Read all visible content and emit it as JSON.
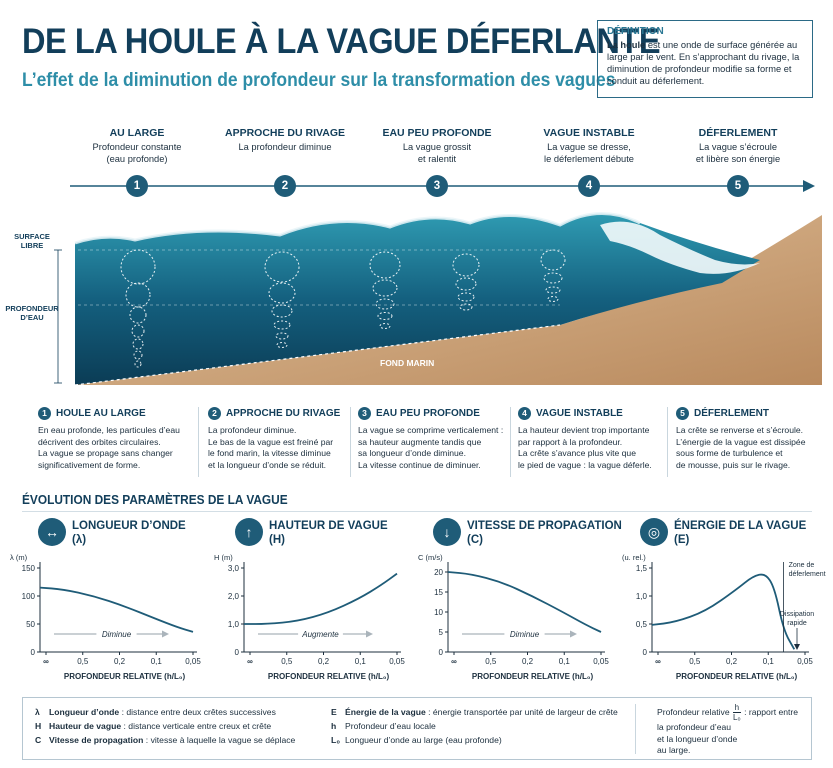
{
  "title": "DE LA HOULE À LA VAGUE DÉFERLANTE",
  "subtitle": "L’effet de la diminution de profondeur sur la transformation des vagues",
  "definition": {
    "heading": "DÉFINITION",
    "text_bold": "La houle",
    "text": " est une onde de surface générée au large par le vent. En s’approchant du rivage, la diminution de profondeur modifie sa forme et conduit au déferlement."
  },
  "stages": [
    {
      "num": "1",
      "title": "AU LARGE",
      "line1": "Profondeur constante",
      "line2": "(eau profonde)"
    },
    {
      "num": "2",
      "title": "APPROCHE DU RIVAGE",
      "line1": "La profondeur diminue",
      "line2": ""
    },
    {
      "num": "3",
      "title": "EAU PEU PROFONDE",
      "line1": "La vague grossit",
      "line2": "et ralentit"
    },
    {
      "num": "4",
      "title": "VAGUE INSTABLE",
      "line1": "La vague se dresse,",
      "line2": "le déferlement débute"
    },
    {
      "num": "5",
      "title": "DÉFERLEMENT",
      "line1": "La vague s’écroule",
      "line2": "et libère son énergie"
    }
  ],
  "diagram_labels": {
    "surface": "SURFACE LIBRE",
    "depth": "PROFONDEUR D’EAU",
    "seabed": "FOND MARIN"
  },
  "colors": {
    "navy": "#123e5a",
    "accent": "#2e8ea8",
    "badge": "#1f5c78",
    "water_deep": "#0f4d6b",
    "water_light": "#2f9bb2",
    "sand": "#cfa57a"
  },
  "descriptions": [
    {
      "num": "1",
      "title": "HOULE AU LARGE",
      "lines": [
        "En eau profonde, les particules d’eau",
        "décrivent des orbites circulaires.",
        "La vague se propage sans changer",
        "significativement de forme."
      ]
    },
    {
      "num": "2",
      "title": "APPROCHE DU RIVAGE",
      "lines": [
        "La profondeur diminue.",
        "Le bas de la vague est freiné par",
        "le fond marin, la vitesse diminue",
        "et la longueur d’onde se réduit."
      ]
    },
    {
      "num": "3",
      "title": "EAU PEU PROFONDE",
      "lines": [
        "La vague se comprime verticalement :",
        "sa hauteur augmente tandis que",
        "sa longueur d’onde diminue.",
        "La vitesse continue de diminuer."
      ]
    },
    {
      "num": "4",
      "title": "VAGUE INSTABLE",
      "lines": [
        "La hauteur devient trop importante",
        "par rapport à la profondeur.",
        "La crête s’avance plus vite que",
        "le pied de vague : la vague déferle."
      ]
    },
    {
      "num": "5",
      "title": "DÉFERLEMENT",
      "lines": [
        "La crête se renverse et s’écroule.",
        "L’énergie de la vague est dissipée",
        "sous forme de turbulence et",
        "de mousse, puis sur le rivage."
      ]
    }
  ],
  "params_heading": "ÉVOLUTION DES PARAMÈTRES DE LA VAGUE",
  "params": [
    {
      "icon": "↔",
      "icon_name": "double-arrow-icon",
      "title1": "LONGUEUR D’ONDE",
      "title2": "(λ)"
    },
    {
      "icon": "↑",
      "icon_name": "up-arrow-icon",
      "title1": "HAUTEUR DE VAGUE",
      "title2": "(H)"
    },
    {
      "icon": "↓",
      "icon_name": "down-arrow-icon",
      "title1": "VITESSE DE PROPAGATION",
      "title2": "(C)"
    },
    {
      "icon": "◎",
      "icon_name": "energy-rings-icon",
      "title1": "ÉNERGIE DE LA VAGUE",
      "title2": "(E)"
    }
  ],
  "chart_data": [
    {
      "type": "line",
      "ylabel": "λ (m)",
      "xlabel": "PROFONDEUR RELATIVE (h/L₀)",
      "x_ticks": [
        "∞",
        "0,5",
        "0,2",
        "0,1",
        "0,05"
      ],
      "y_ticks": [
        "0",
        "50",
        "100",
        "150"
      ],
      "ylim": [
        0,
        150
      ],
      "x_pos": [
        0,
        0.15,
        0.35,
        0.55,
        0.75,
        0.9,
        1
      ],
      "values": [
        115,
        112,
        100,
        82,
        60,
        44,
        36
      ],
      "annotation": "Diminue",
      "arrow_dir": "right"
    },
    {
      "type": "line",
      "ylabel": "H (m)",
      "xlabel": "PROFONDEUR RELATIVE (h/L₀)",
      "x_ticks": [
        "∞",
        "0,5",
        "0,2",
        "0,1",
        "0,05"
      ],
      "y_ticks": [
        "0",
        "1,0",
        "2,0",
        "3,0"
      ],
      "ylim": [
        0,
        3
      ],
      "x_pos": [
        0,
        0.15,
        0.35,
        0.55,
        0.75,
        0.9,
        1
      ],
      "values": [
        1.0,
        1.0,
        1.1,
        1.4,
        1.9,
        2.4,
        2.8
      ],
      "annotation": "Augmente",
      "arrow_dir": "right"
    },
    {
      "type": "line",
      "ylabel": "C (m/s)",
      "xlabel": "PROFONDEUR RELATIVE (h/L₀)",
      "x_ticks": [
        "∞",
        "0,5",
        "0,2",
        "0,1",
        "0,05"
      ],
      "y_ticks": [
        "0",
        "5",
        "10",
        "15",
        "20"
      ],
      "ylim": [
        0,
        21
      ],
      "x_pos": [
        0,
        0.15,
        0.35,
        0.55,
        0.75,
        0.9,
        1
      ],
      "values": [
        20,
        19.5,
        17.5,
        14,
        10,
        6.8,
        5
      ],
      "annotation": "Diminue",
      "arrow_dir": "right"
    },
    {
      "type": "line",
      "ylabel": "(u. rel.)",
      "xlabel": "PROFONDEUR RELATIVE (h/L₀)",
      "x_ticks": [
        "∞",
        "0,5",
        "0,2",
        "0,1",
        "0,05"
      ],
      "y_ticks": [
        "0",
        "0,5",
        "1,0",
        "1,5"
      ],
      "ylim": [
        0,
        1.55
      ],
      "x_pos": [
        0,
        0.15,
        0.35,
        0.55,
        0.66,
        0.74,
        0.8,
        0.86,
        0.93
      ],
      "values": [
        0.5,
        0.55,
        0.75,
        1.15,
        1.4,
        1.45,
        1.2,
        0.4,
        0.05
      ],
      "annotation_zone": "Zone de déferlement",
      "annotation_dissip": "Dissipation rapide"
    }
  ],
  "legend": {
    "col1": [
      {
        "k": "λ",
        "name": "Longueur d’onde",
        "desc": " : distance entre deux crêtes successives"
      },
      {
        "k": "H",
        "name": "Hauteur de vague",
        "desc": " : distance verticale entre creux et crête"
      },
      {
        "k": "C",
        "name": "Vitesse de propagation",
        "desc": " : vitesse à laquelle la vague se déplace"
      }
    ],
    "col2": [
      {
        "k": "E",
        "name": "Énergie de la vague",
        "desc": " : énergie transportée par unité de largeur de crête"
      },
      {
        "k": "h",
        "name": "",
        "desc": "Profondeur d’eau locale"
      },
      {
        "k": "L₀",
        "name": "",
        "desc": "Longueur d’onde au large (eau profonde)"
      }
    ],
    "col3": {
      "lead": "Profondeur relative",
      "num": "h",
      "den": "L₀",
      "rest": ": rapport entre",
      "lines": [
        "la profondeur d’eau",
        "et la longueur d’onde",
        "au large."
      ]
    }
  }
}
